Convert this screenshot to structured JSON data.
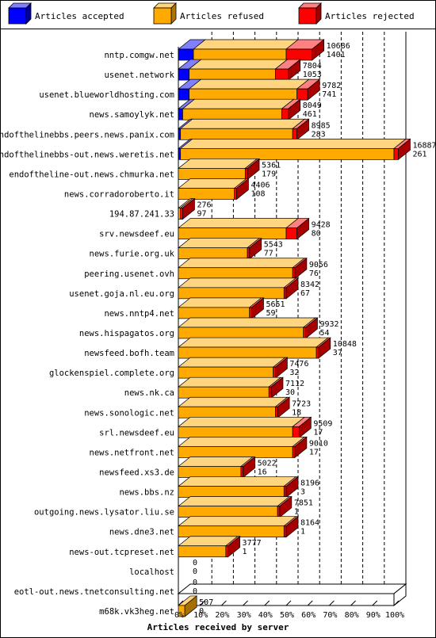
{
  "chart_data": {
    "type": "bar",
    "orientation": "horizontal",
    "stacked": true,
    "xlabel": "Articles received by server",
    "x_ticks": [
      "0%",
      "10%",
      "20%",
      "30%",
      "40%",
      "50%",
      "60%",
      "70%",
      "80%",
      "90%",
      "100%"
    ],
    "xlim": [
      0,
      100
    ],
    "legend_position": "top",
    "grid": true,
    "colors": {
      "accepted": "#0000ff",
      "refused": "#ffaa00",
      "rejected": "#ff0000"
    },
    "series": [
      {
        "name": "Articles accepted",
        "key": "accepted"
      },
      {
        "name": "Articles refused",
        "key": "refused"
      },
      {
        "name": "Articles rejected",
        "key": "rejected"
      }
    ],
    "categories": [
      "nntp.comgw.net",
      "usenet.network",
      "usenet.blueworldhosting.com",
      "news.samoylyk.net",
      "endofthelinebbs.peers.news.panix.com",
      "endofthelinebbs-out.news.weretis.net",
      "endoftheline-out.news.chmurka.net",
      "news.corradoroberto.it",
      "194.87.241.33",
      "srv.newsdeef.eu",
      "news.furie.org.uk",
      "peering.usenet.ovh",
      "usenet.goja.nl.eu.org",
      "news.nntp4.net",
      "news.hispagatos.org",
      "newsfeed.bofh.team",
      "glockenspiel.complete.org",
      "news.nk.ca",
      "news.sonologic.net",
      "srl.newsdeef.eu",
      "news.netfront.net",
      "newsfeed.xs3.de",
      "news.bbs.nz",
      "outgoing.news.lysator.liu.se",
      "news.dne3.net",
      "news-out.tcpreset.net",
      "localhost",
      "eotl-out.news.tnetconsulting.net",
      "m68k.vk3heg.net"
    ],
    "totals": [
      10686,
      7804,
      9782,
      8049,
      8985,
      16887,
      5361,
      4406,
      276,
      9428,
      5543,
      9056,
      8342,
      5651,
      9932,
      10848,
      7476,
      7112,
      7723,
      9509,
      9010,
      5022,
      8196,
      7851,
      8164,
      3777,
      0,
      0,
      507
    ],
    "rejected_labels": [
      1401,
      1053,
      741,
      461,
      283,
      261,
      179,
      108,
      97,
      80,
      77,
      76,
      67,
      59,
      54,
      37,
      32,
      30,
      18,
      17,
      17,
      16,
      3,
      1,
      1,
      1,
      0,
      0,
      0
    ],
    "accepted_pct": [
      7,
      5,
      5,
      2,
      1,
      1,
      0,
      0,
      0,
      0,
      0,
      0,
      0,
      0,
      0,
      0,
      0,
      0,
      0,
      0,
      0,
      0,
      0,
      0,
      0,
      0,
      0,
      0,
      0
    ],
    "refused_pct": [
      43,
      40,
      50,
      46,
      52,
      99,
      31,
      26,
      1,
      50,
      32,
      53,
      49,
      33,
      58,
      64,
      44,
      42,
      45,
      53,
      53,
      29,
      49,
      46,
      49,
      22,
      0,
      0,
      3
    ],
    "rejected_pct": [
      12,
      6,
      5,
      3,
      2,
      2,
      1,
      1,
      1,
      5,
      1,
      1,
      1,
      1,
      1,
      1,
      1,
      1,
      1,
      3,
      1,
      1,
      1,
      1,
      1,
      1,
      0,
      0,
      0
    ]
  }
}
